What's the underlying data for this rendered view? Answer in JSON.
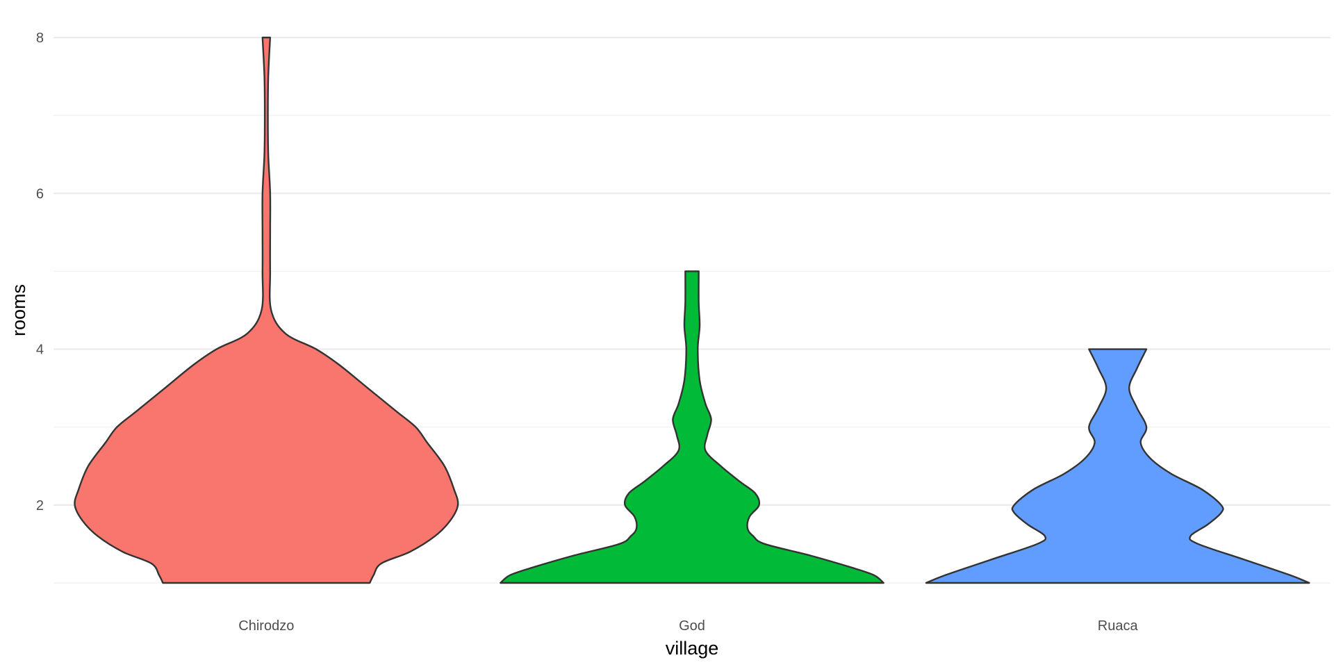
{
  "chart_data": {
    "type": "violin",
    "xlabel": "village",
    "ylabel": "rooms",
    "categories": [
      "Chirodzo",
      "God",
      "Ruaca"
    ],
    "ylim": [
      1,
      8
    ],
    "yticks": [
      2,
      4,
      6,
      8
    ],
    "grid": true,
    "legend": "none",
    "series": [
      {
        "category": "Chirodzo",
        "color": "#F8766D",
        "density": [
          [
            1.0,
            0.54
          ],
          [
            1.1,
            0.56
          ],
          [
            1.25,
            0.6
          ],
          [
            1.4,
            0.75
          ],
          [
            1.6,
            0.88
          ],
          [
            1.8,
            0.96
          ],
          [
            2.0,
            1.0
          ],
          [
            2.2,
            0.98
          ],
          [
            2.5,
            0.93
          ],
          [
            2.8,
            0.84
          ],
          [
            3.0,
            0.78
          ],
          [
            3.2,
            0.68
          ],
          [
            3.5,
            0.53
          ],
          [
            3.8,
            0.38
          ],
          [
            4.0,
            0.26
          ],
          [
            4.2,
            0.1
          ],
          [
            4.5,
            0.025
          ],
          [
            5.0,
            0.02
          ],
          [
            5.5,
            0.02
          ],
          [
            6.0,
            0.02
          ],
          [
            6.5,
            0.01
          ],
          [
            7.0,
            0.008
          ],
          [
            7.5,
            0.01
          ],
          [
            8.0,
            0.02
          ]
        ]
      },
      {
        "category": "God",
        "color": "#00BA38",
        "density": [
          [
            1.0,
            1.0
          ],
          [
            1.1,
            0.95
          ],
          [
            1.2,
            0.83
          ],
          [
            1.35,
            0.62
          ],
          [
            1.5,
            0.38
          ],
          [
            1.6,
            0.32
          ],
          [
            1.7,
            0.29
          ],
          [
            1.85,
            0.3
          ],
          [
            2.0,
            0.35
          ],
          [
            2.15,
            0.33
          ],
          [
            2.3,
            0.25
          ],
          [
            2.5,
            0.15
          ],
          [
            2.7,
            0.07
          ],
          [
            2.9,
            0.08
          ],
          [
            3.1,
            0.1
          ],
          [
            3.3,
            0.07
          ],
          [
            3.6,
            0.04
          ],
          [
            4.0,
            0.03
          ],
          [
            4.3,
            0.04
          ],
          [
            4.6,
            0.035
          ],
          [
            5.0,
            0.035
          ]
        ]
      },
      {
        "category": "Ruaca",
        "color": "#619CFF",
        "density": [
          [
            1.0,
            1.0
          ],
          [
            1.1,
            0.9
          ],
          [
            1.3,
            0.66
          ],
          [
            1.5,
            0.42
          ],
          [
            1.6,
            0.38
          ],
          [
            1.75,
            0.47
          ],
          [
            1.9,
            0.54
          ],
          [
            2.0,
            0.54
          ],
          [
            2.2,
            0.44
          ],
          [
            2.4,
            0.28
          ],
          [
            2.6,
            0.17
          ],
          [
            2.8,
            0.12
          ],
          [
            3.0,
            0.15
          ],
          [
            3.25,
            0.1
          ],
          [
            3.5,
            0.06
          ],
          [
            3.75,
            0.1
          ],
          [
            4.0,
            0.15
          ]
        ]
      }
    ]
  }
}
